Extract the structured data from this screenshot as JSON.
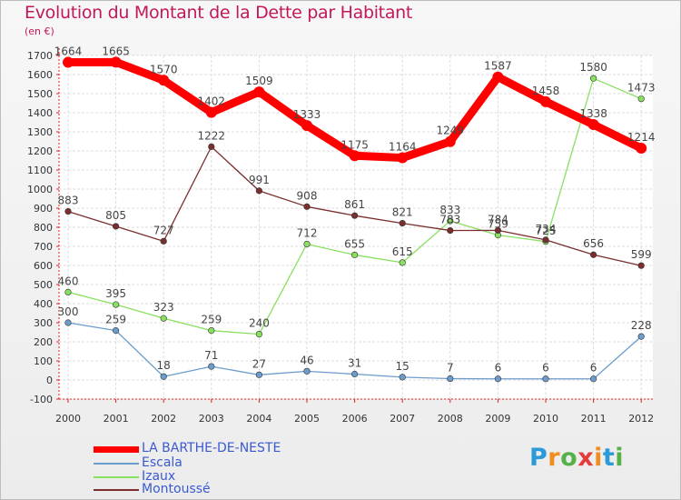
{
  "chart_data": {
    "type": "line",
    "title": "Evolution du Montant de la Dette par Habitant",
    "subtitle": "(en €)",
    "x": [
      "2000",
      "2001",
      "2002",
      "2003",
      "2004",
      "2005",
      "2006",
      "2007",
      "2008",
      "2009",
      "2010",
      "2011",
      "2012"
    ],
    "ylim": [
      -100,
      1700
    ],
    "yticks": [
      -100,
      0,
      100,
      200,
      300,
      400,
      500,
      600,
      700,
      800,
      900,
      1000,
      1100,
      1200,
      1300,
      1400,
      1500,
      1600,
      1700
    ],
    "grid": true,
    "legend_position": "bottom-left",
    "series": [
      {
        "name": "LA BARTHE-DE-NESTE",
        "color": "#ff0000",
        "values": [
          1664,
          1665,
          1570,
          1402,
          1509,
          1333,
          1175,
          1164,
          1249,
          1587,
          1458,
          1338,
          1214
        ]
      },
      {
        "name": "Escala",
        "color": "#6c9ccc",
        "values": [
          300,
          259,
          18,
          71,
          27,
          46,
          31,
          15,
          7,
          6,
          6,
          6,
          228
        ]
      },
      {
        "name": "Izaux",
        "color": "#88e060",
        "values": [
          460,
          395,
          323,
          259,
          240,
          712,
          655,
          615,
          833,
          759,
          725,
          1580,
          1473
        ]
      },
      {
        "name": "Montoussé",
        "color": "#7a2e2e",
        "values": [
          883,
          805,
          727,
          1222,
          991,
          908,
          861,
          821,
          783,
          784,
          734,
          656,
          599
        ]
      }
    ]
  },
  "brand": {
    "letters": [
      "P",
      "r",
      "o",
      "x",
      "i",
      "t",
      "i"
    ],
    "colors": [
      "#2c9ad8",
      "#f28c1f",
      "#57b14a",
      "#e53b3b",
      "#f28c1f",
      "#2c9ad8",
      "#57b14a"
    ]
  }
}
